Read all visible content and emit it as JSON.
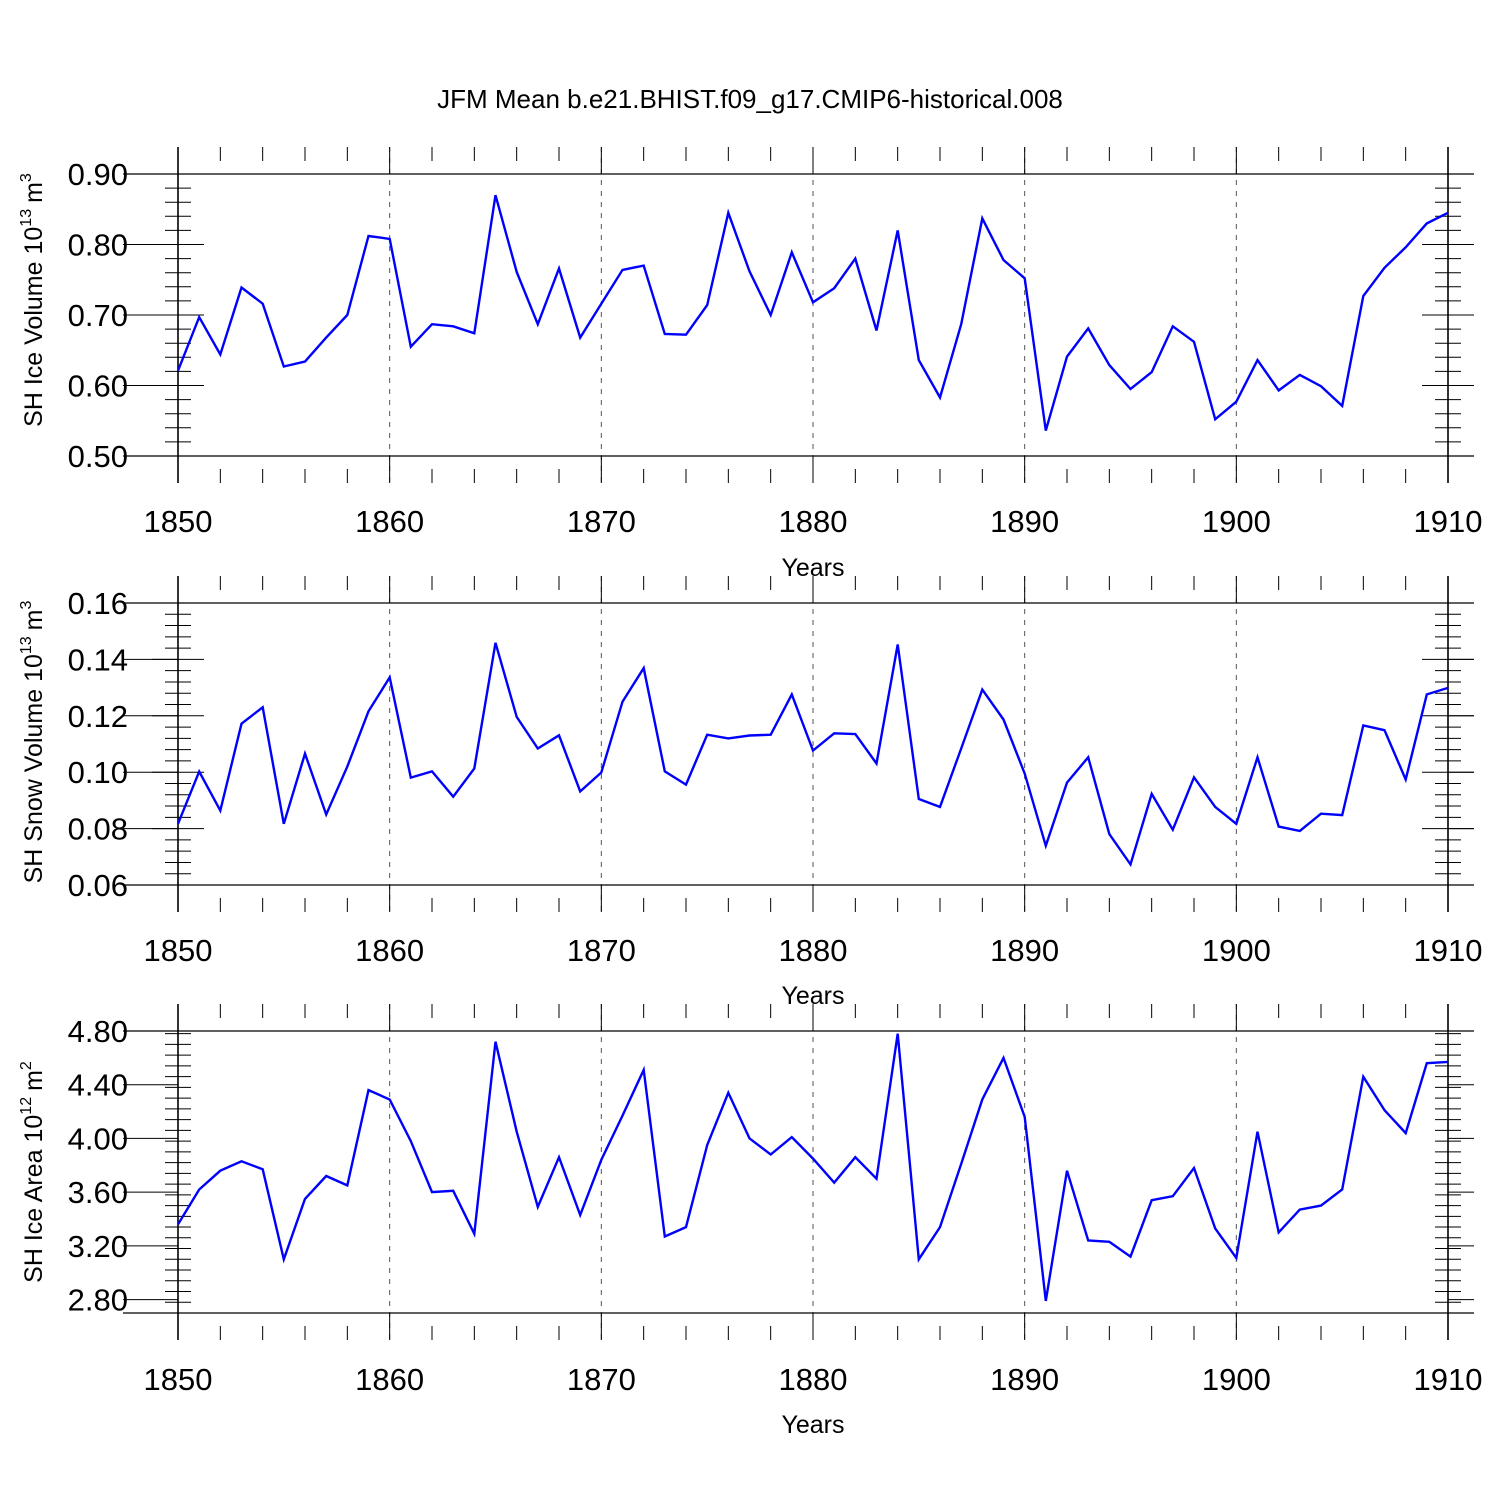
{
  "title": "JFM Mean b.e21.BHIST.f09_g17.CMIP6-historical.008",
  "colors": {
    "line": "#0000ff",
    "axis": "#000000",
    "grid": "#555555"
  },
  "chart_data": [
    {
      "type": "line",
      "ylabel": "SH Ice Volume 10",
      "ylabel_exponent": "13",
      "ylabel_unit": "m",
      "ylabel_unit_exponent": "3",
      "xlabel": "Years",
      "xlim": [
        1850,
        1910
      ],
      "ylim": [
        0.5,
        0.9
      ],
      "x_ticks": [
        1850,
        1860,
        1870,
        1880,
        1890,
        1900,
        1910
      ],
      "y_ticks": [
        "0.50",
        "0.60",
        "0.70",
        "0.80",
        "0.90"
      ],
      "x": [
        1850,
        1851,
        1852,
        1853,
        1854,
        1855,
        1856,
        1857,
        1858,
        1859,
        1860,
        1861,
        1862,
        1863,
        1864,
        1865,
        1866,
        1867,
        1868,
        1869,
        1870,
        1871,
        1872,
        1873,
        1874,
        1875,
        1876,
        1877,
        1878,
        1879,
        1880,
        1881,
        1882,
        1883,
        1884,
        1885,
        1886,
        1887,
        1888,
        1889,
        1890,
        1891,
        1892,
        1893,
        1894,
        1895,
        1896,
        1897,
        1898,
        1899,
        1900,
        1901,
        1902,
        1903,
        1904,
        1905,
        1906,
        1907,
        1908,
        1909,
        1910
      ],
      "values": [
        0.621,
        0.697,
        0.644,
        0.739,
        0.716,
        0.627,
        0.634,
        0.668,
        0.7,
        0.812,
        0.808,
        0.655,
        0.687,
        0.684,
        0.674,
        0.87,
        0.761,
        0.687,
        0.766,
        0.668,
        0.716,
        0.764,
        0.77,
        0.673,
        0.672,
        0.714,
        0.845,
        0.762,
        0.7,
        0.789,
        0.718,
        0.738,
        0.78,
        0.678,
        0.82,
        0.636,
        0.583,
        0.687,
        0.837,
        0.778,
        0.752,
        0.536,
        0.641,
        0.681,
        0.629,
        0.595,
        0.619,
        0.684,
        0.662,
        0.552,
        0.577,
        0.636,
        0.593,
        0.615,
        0.599,
        0.571,
        0.727,
        0.767,
        0.796,
        0.83,
        0.845
      ]
    },
    {
      "type": "line",
      "ylabel": "SH Snow Volume 10",
      "ylabel_exponent": "13",
      "ylabel_unit": "m",
      "ylabel_unit_exponent": "3",
      "xlabel": "Years",
      "xlim": [
        1850,
        1910
      ],
      "ylim": [
        0.06,
        0.16
      ],
      "x_ticks": [
        1850,
        1860,
        1870,
        1880,
        1890,
        1900,
        1910
      ],
      "y_ticks": [
        "0.06",
        "0.08",
        "0.10",
        "0.12",
        "0.14",
        "0.16"
      ],
      "x": [
        1850,
        1851,
        1852,
        1853,
        1854,
        1855,
        1856,
        1857,
        1858,
        1859,
        1860,
        1861,
        1862,
        1863,
        1864,
        1865,
        1866,
        1867,
        1868,
        1869,
        1870,
        1871,
        1872,
        1873,
        1874,
        1875,
        1876,
        1877,
        1878,
        1879,
        1880,
        1881,
        1882,
        1883,
        1884,
        1885,
        1886,
        1887,
        1888,
        1889,
        1890,
        1891,
        1892,
        1893,
        1894,
        1895,
        1896,
        1897,
        1898,
        1899,
        1900,
        1901,
        1902,
        1903,
        1904,
        1905,
        1906,
        1907,
        1908,
        1909,
        1910
      ],
      "values": [
        0.0817,
        0.1002,
        0.0864,
        0.1172,
        0.123,
        0.0817,
        0.1066,
        0.085,
        0.102,
        0.1216,
        0.1336,
        0.0981,
        0.1003,
        0.0913,
        0.1013,
        0.1459,
        0.1196,
        0.1084,
        0.1131,
        0.0932,
        0.0999,
        0.125,
        0.1369,
        0.1003,
        0.0956,
        0.1133,
        0.112,
        0.113,
        0.1133,
        0.1276,
        0.1077,
        0.1138,
        0.1135,
        0.1031,
        0.1453,
        0.0905,
        0.0877,
        0.1084,
        0.1293,
        0.1187,
        0.0995,
        0.0739,
        0.0963,
        0.1053,
        0.0781,
        0.0673,
        0.0923,
        0.0796,
        0.0982,
        0.0877,
        0.0817,
        0.1053,
        0.0807,
        0.0792,
        0.0853,
        0.0848,
        0.1166,
        0.1149,
        0.0974,
        0.1276,
        0.1299
      ]
    },
    {
      "type": "line",
      "ylabel": "SH Ice Area 10",
      "ylabel_exponent": "12",
      "ylabel_unit": "m",
      "ylabel_unit_exponent": "2",
      "xlabel": "Years",
      "xlim": [
        1850,
        1910
      ],
      "ylim": [
        2.7,
        4.8
      ],
      "x_ticks": [
        1850,
        1860,
        1870,
        1880,
        1890,
        1900,
        1910
      ],
      "y_ticks": [
        "2.80",
        "3.20",
        "3.60",
        "4.00",
        "4.40",
        "4.80"
      ],
      "x": [
        1850,
        1851,
        1852,
        1853,
        1854,
        1855,
        1856,
        1857,
        1858,
        1859,
        1860,
        1861,
        1862,
        1863,
        1864,
        1865,
        1866,
        1867,
        1868,
        1869,
        1870,
        1871,
        1872,
        1873,
        1874,
        1875,
        1876,
        1877,
        1878,
        1879,
        1880,
        1881,
        1882,
        1883,
        1884,
        1885,
        1886,
        1887,
        1888,
        1889,
        1890,
        1891,
        1892,
        1893,
        1894,
        1895,
        1896,
        1897,
        1898,
        1899,
        1900,
        1901,
        1902,
        1903,
        1904,
        1905,
        1906,
        1907,
        1908,
        1909,
        1910
      ],
      "values": [
        3.36,
        3.62,
        3.76,
        3.83,
        3.77,
        3.1,
        3.55,
        3.72,
        3.65,
        4.36,
        4.29,
        3.98,
        3.6,
        3.61,
        3.29,
        4.72,
        4.05,
        3.49,
        3.86,
        3.43,
        3.84,
        4.17,
        4.51,
        3.27,
        3.34,
        3.95,
        4.34,
        4.0,
        3.88,
        4.01,
        3.85,
        3.67,
        3.86,
        3.7,
        4.78,
        3.1,
        3.34,
        3.81,
        4.29,
        4.6,
        4.16,
        2.79,
        3.76,
        3.24,
        3.23,
        3.12,
        3.54,
        3.57,
        3.78,
        3.33,
        3.11,
        4.05,
        3.3,
        3.47,
        3.5,
        3.62,
        4.46,
        4.21,
        4.04,
        4.56,
        4.57
      ]
    }
  ]
}
